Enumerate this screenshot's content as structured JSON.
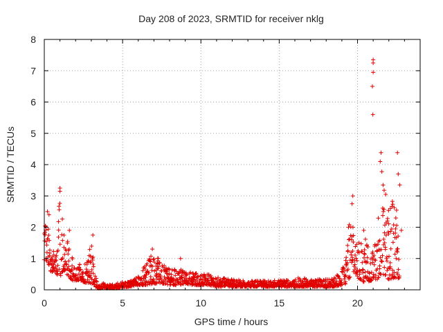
{
  "chart_data": {
    "type": "scatter",
    "title": "Day 208 of 2023, SRMTID for receiver nklg",
    "xlabel": "GPS time / hours",
    "ylabel": "SRMTID / TECUs",
    "xlim": [
      0,
      24
    ],
    "ylim": [
      0,
      8
    ],
    "xticks": [
      0,
      5,
      10,
      15,
      20
    ],
    "yticks": [
      0,
      1,
      2,
      3,
      4,
      5,
      6,
      7,
      8
    ],
    "grid": true,
    "marker": "+",
    "color": "#e00000",
    "series": [
      {
        "name": "SRMTID",
        "envelope": {
          "x": [
            0.0,
            0.2,
            0.4,
            0.6,
            0.8,
            1.0,
            1.2,
            1.4,
            1.6,
            1.8,
            2.0,
            2.2,
            2.5,
            2.8,
            3.0,
            3.2,
            3.4,
            3.8,
            4.2,
            4.6,
            5.0,
            5.5,
            6.0,
            6.5,
            7.0,
            7.5,
            8.0,
            8.5,
            9.0,
            9.5,
            10.0,
            10.5,
            11.0,
            12.0,
            13.0,
            14.0,
            15.0,
            15.5,
            16.0,
            17.0,
            18.0,
            18.5,
            19.0,
            19.3,
            19.6,
            19.8,
            20.0,
            20.3,
            20.6,
            20.9,
            21.2,
            21.5,
            21.8,
            22.1,
            22.4,
            22.7
          ],
          "y_low": [
            0.9,
            0.9,
            0.6,
            0.5,
            0.5,
            0.4,
            0.6,
            0.5,
            0.4,
            0.3,
            0.3,
            0.3,
            0.25,
            0.2,
            0.2,
            0.12,
            0.05,
            0.05,
            0.05,
            0.05,
            0.08,
            0.1,
            0.15,
            0.15,
            0.2,
            0.2,
            0.15,
            0.15,
            0.2,
            0.15,
            0.15,
            0.15,
            0.1,
            0.1,
            0.1,
            0.1,
            0.1,
            0.1,
            0.1,
            0.1,
            0.1,
            0.1,
            0.15,
            0.2,
            0.5,
            0.6,
            0.4,
            0.25,
            0.25,
            0.3,
            0.3,
            0.5,
            0.4,
            0.3,
            0.4,
            0.35
          ],
          "y_high": [
            1.9,
            2.4,
            1.6,
            1.3,
            1.4,
            3.2,
            2.1,
            1.8,
            1.3,
            1.0,
            0.8,
            0.9,
            0.8,
            1.1,
            1.7,
            0.6,
            0.25,
            0.2,
            0.2,
            0.2,
            0.25,
            0.3,
            0.45,
            0.9,
            1.2,
            0.9,
            0.65,
            0.7,
            0.6,
            0.55,
            0.5,
            0.5,
            0.4,
            0.35,
            0.3,
            0.3,
            0.3,
            0.35,
            0.4,
            0.35,
            0.35,
            0.4,
            0.6,
            1.3,
            3.0,
            2.0,
            1.4,
            1.9,
            1.5,
            1.2,
            1.7,
            4.4,
            3.0,
            2.4,
            3.5,
            2.0
          ]
        },
        "highlights": [
          {
            "x": 21.0,
            "y": 7.35
          },
          {
            "x": 21.0,
            "y": 7.25
          },
          {
            "x": 21.0,
            "y": 6.95
          },
          {
            "x": 20.95,
            "y": 6.5
          },
          {
            "x": 20.98,
            "y": 5.6
          },
          {
            "x": 22.55,
            "y": 4.38
          },
          {
            "x": 21.5,
            "y": 4.38
          },
          {
            "x": 21.45,
            "y": 4.1
          },
          {
            "x": 22.6,
            "y": 3.7
          },
          {
            "x": 1.0,
            "y": 3.25
          },
          {
            "x": 1.0,
            "y": 3.15
          },
          {
            "x": 19.7,
            "y": 3.0
          },
          {
            "x": 22.7,
            "y": 3.35
          },
          {
            "x": 0.2,
            "y": 2.5
          },
          {
            "x": 0.3,
            "y": 2.4
          },
          {
            "x": 8.7,
            "y": 1.0
          },
          {
            "x": 6.9,
            "y": 1.3
          },
          {
            "x": 3.1,
            "y": 1.75
          },
          {
            "x": 1.6,
            "y": 1.9
          },
          {
            "x": 22.1,
            "y": 2.6
          },
          {
            "x": 21.8,
            "y": 3.05
          },
          {
            "x": 20.4,
            "y": 1.9
          },
          {
            "x": 21.65,
            "y": 2.5
          },
          {
            "x": 22.8,
            "y": 1.9
          }
        ]
      }
    ]
  }
}
